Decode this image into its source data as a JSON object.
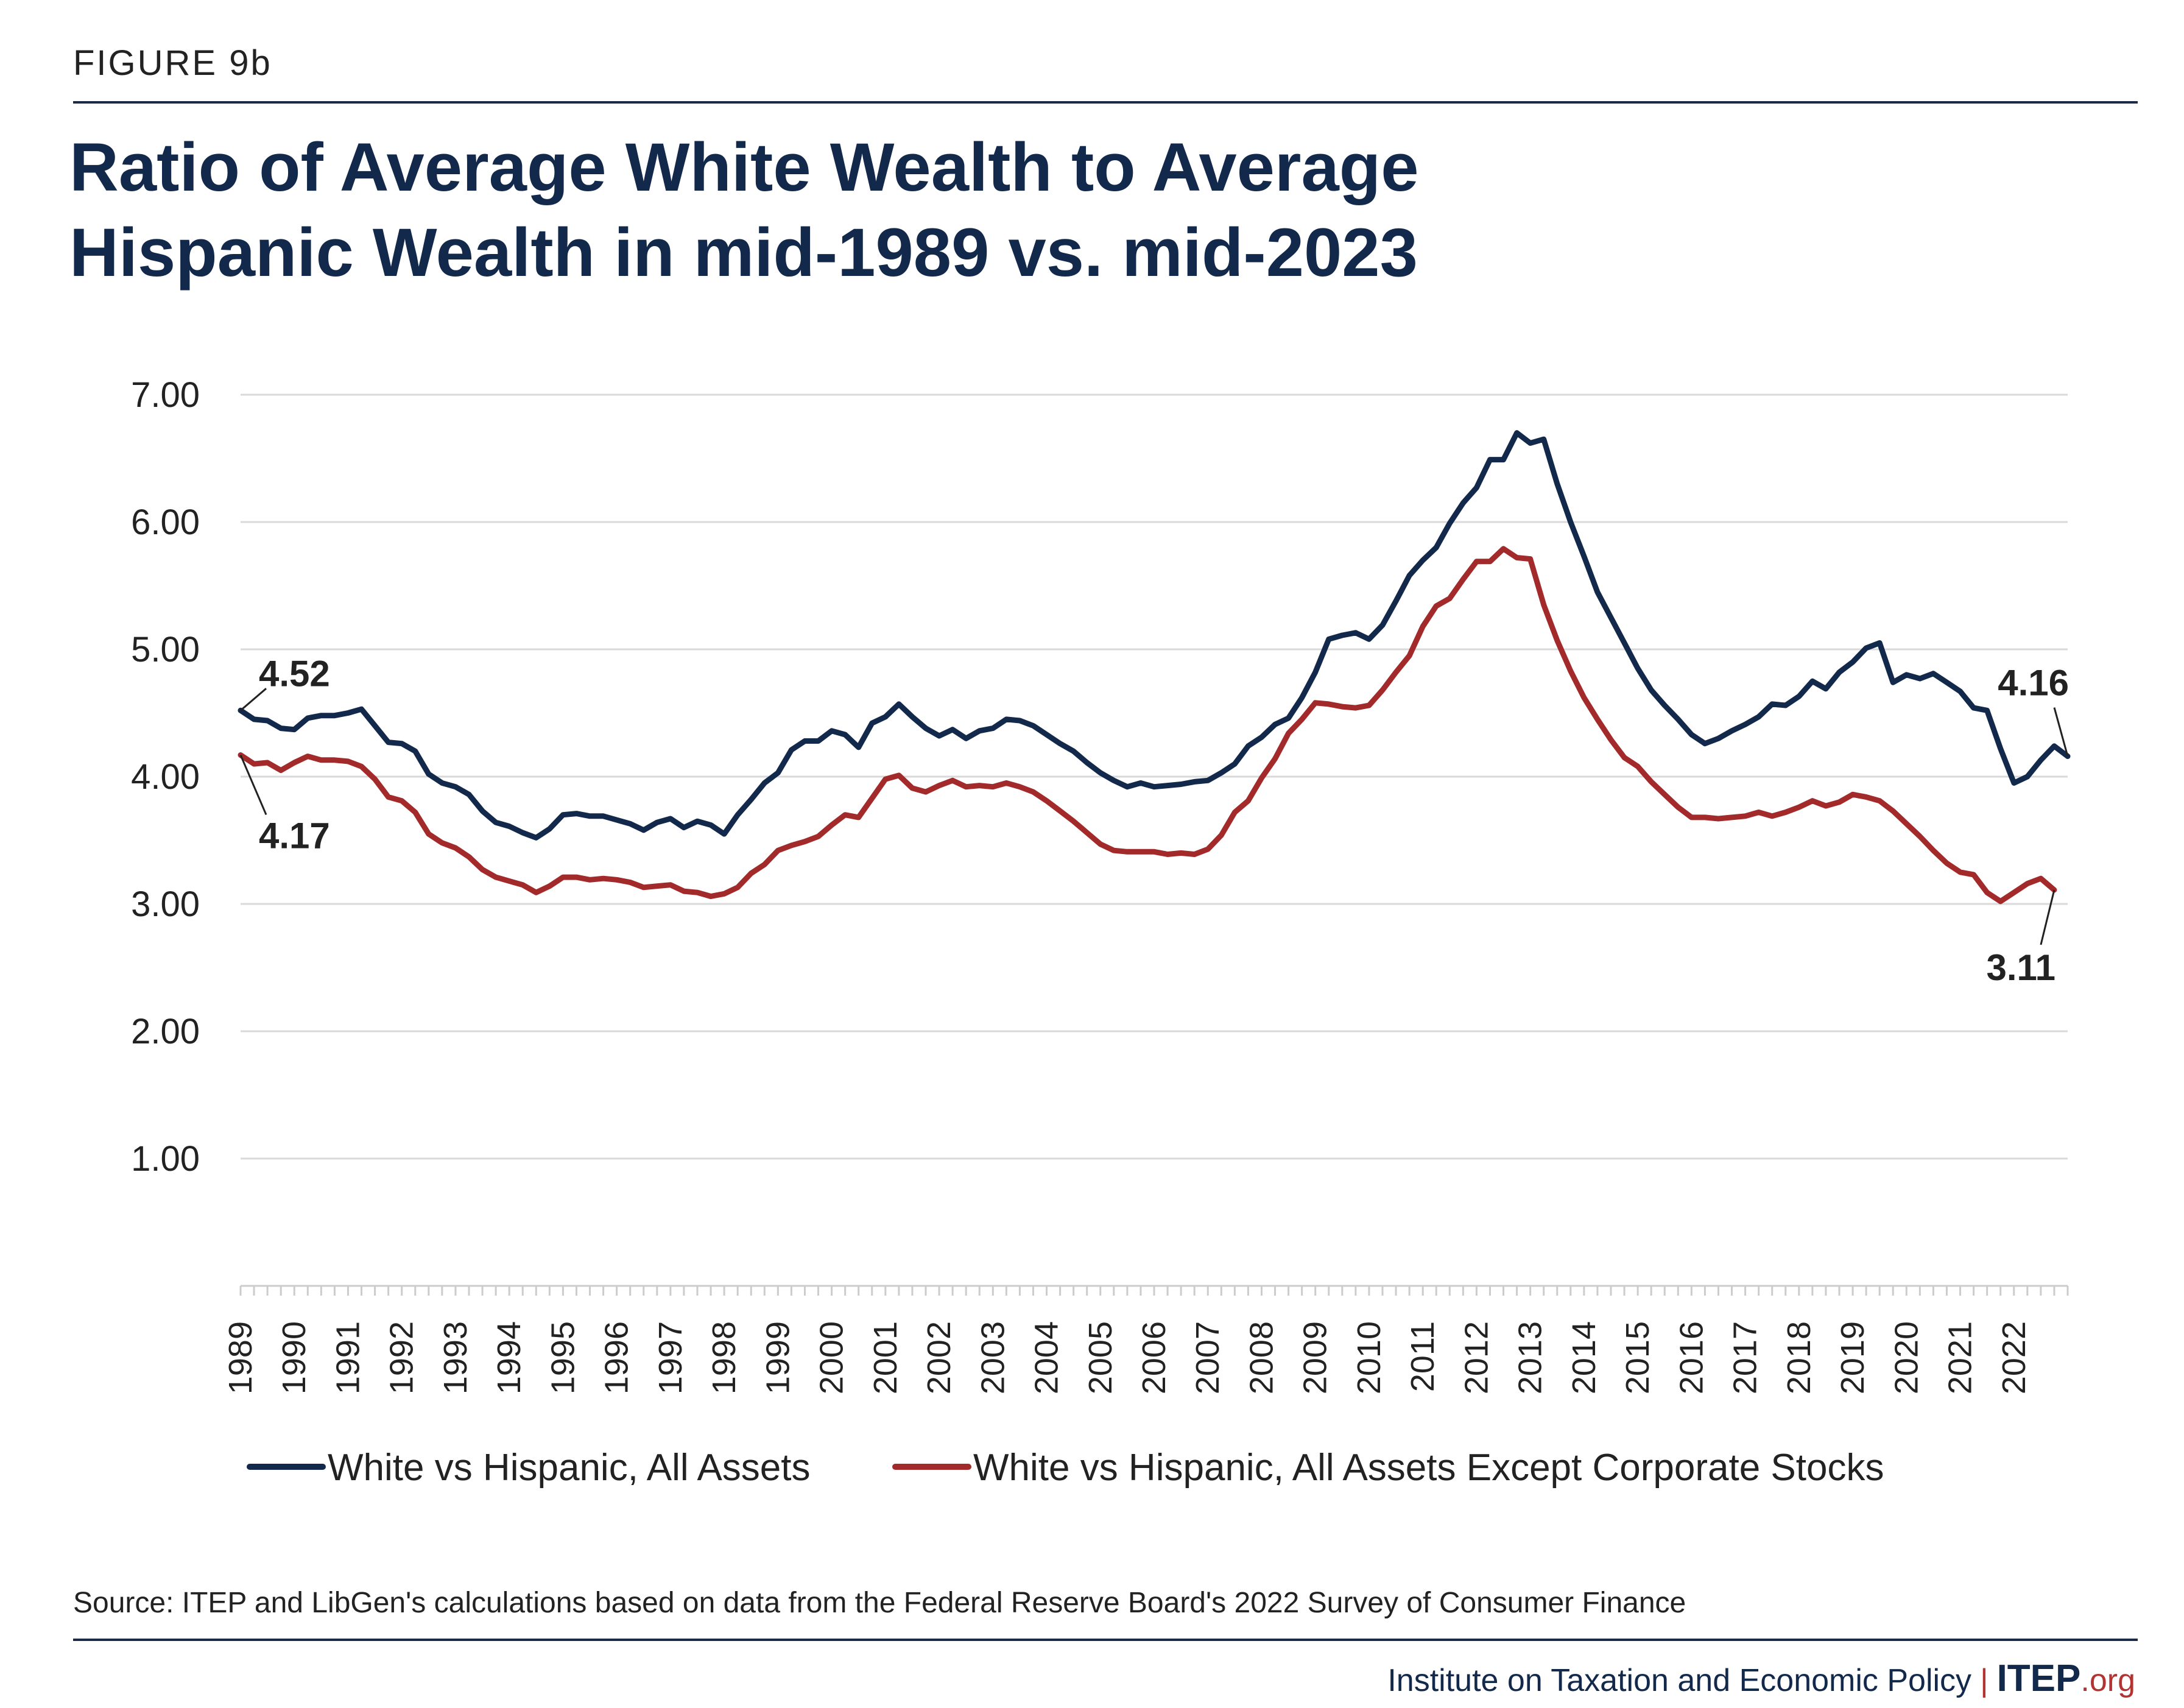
{
  "figure_label": "FIGURE 9b",
  "title_line1": "Ratio of Average White Wealth to Average",
  "title_line2": "Hispanic Wealth in mid-1989 vs. mid-2023",
  "source": "Source: ITEP and LibGen's calculations based on data from the Federal Reserve Board's 2022 Survey of Consumer Finance",
  "footer": {
    "org_name": "Institute on Taxation and Economic Policy",
    "logo_main": "ITEP",
    "logo_suffix": ".org"
  },
  "colors": {
    "navy": "#13294b",
    "red": "#a32a2a",
    "grid": "#d9d9d9",
    "text": "#222222"
  },
  "chart_data": {
    "type": "line",
    "title": "Ratio of Average White Wealth to Average Hispanic Wealth in mid-1989 vs. mid-2023",
    "xlabel": "",
    "ylabel": "",
    "ylim": [
      0,
      7
    ],
    "yticks": [
      "7.00",
      "6.00",
      "5.00",
      "4.00",
      "3.00",
      "2.00",
      "1.00"
    ],
    "ytick_values": [
      7,
      6,
      5,
      4,
      3,
      2,
      1
    ],
    "xtick_labels": [
      "1989",
      "1990",
      "1991",
      "1992",
      "1993",
      "1994",
      "1995",
      "1996",
      "1997",
      "1998",
      "1999",
      "2000",
      "2001",
      "2002",
      "2003",
      "2004",
      "2005",
      "2006",
      "2007",
      "2008",
      "2009",
      "2010",
      "2011",
      "2012",
      "2013",
      "2014",
      "2015",
      "2016",
      "2017",
      "2018",
      "2019",
      "2020",
      "2021",
      "2022"
    ],
    "x_start_year": 1989,
    "x_step": 0.25,
    "grid": "horizontal",
    "legend": "bottom",
    "series": [
      {
        "name": "White vs Hispanic, All Assets",
        "color": "#13294b",
        "values": [
          4.52,
          4.45,
          4.44,
          4.38,
          4.37,
          4.46,
          4.48,
          4.48,
          4.5,
          4.53,
          4.4,
          4.27,
          4.26,
          4.2,
          4.02,
          3.95,
          3.92,
          3.86,
          3.73,
          3.64,
          3.61,
          3.56,
          3.52,
          3.59,
          3.7,
          3.71,
          3.69,
          3.69,
          3.66,
          3.63,
          3.58,
          3.64,
          3.67,
          3.6,
          3.65,
          3.62,
          3.55,
          3.7,
          3.82,
          3.95,
          4.03,
          4.21,
          4.28,
          4.28,
          4.36,
          4.33,
          4.23,
          4.42,
          4.47,
          4.57,
          4.47,
          4.38,
          4.32,
          4.37,
          4.3,
          4.36,
          4.38,
          4.45,
          4.44,
          4.4,
          4.33,
          4.26,
          4.2,
          4.11,
          4.03,
          3.97,
          3.92,
          3.95,
          3.92,
          3.93,
          3.94,
          3.96,
          3.97,
          4.03,
          4.1,
          4.24,
          4.31,
          4.41,
          4.46,
          4.62,
          4.82,
          5.08,
          5.11,
          5.13,
          5.08,
          5.19,
          5.38,
          5.58,
          5.7,
          5.8,
          5.99,
          6.15,
          6.27,
          6.49,
          6.49,
          6.7,
          6.62,
          6.65,
          6.3,
          6.0,
          5.73,
          5.45,
          5.25,
          5.05,
          4.85,
          4.68,
          4.56,
          4.45,
          4.33,
          4.26,
          4.3,
          4.36,
          4.41,
          4.47,
          4.57,
          4.56,
          4.63,
          4.75,
          4.69,
          4.82,
          4.9,
          5.01,
          5.05,
          4.74,
          4.8,
          4.77,
          4.81,
          4.74,
          4.67,
          4.54,
          4.52,
          4.22,
          3.95,
          4.0,
          4.13,
          4.24,
          4.16
        ]
      },
      {
        "name": "White vs Hispanic, All Assets Except Corporate Stocks",
        "color": "#a32a2a",
        "values": [
          4.17,
          4.1,
          4.11,
          4.05,
          4.11,
          4.16,
          4.13,
          4.13,
          4.12,
          4.08,
          3.98,
          3.84,
          3.81,
          3.72,
          3.55,
          3.48,
          3.44,
          3.37,
          3.27,
          3.21,
          3.18,
          3.15,
          3.09,
          3.14,
          3.21,
          3.21,
          3.19,
          3.2,
          3.19,
          3.17,
          3.13,
          3.14,
          3.15,
          3.1,
          3.09,
          3.06,
          3.08,
          3.13,
          3.24,
          3.31,
          3.42,
          3.46,
          3.49,
          3.53,
          3.62,
          3.7,
          3.68,
          3.83,
          3.98,
          4.01,
          3.91,
          3.88,
          3.93,
          3.97,
          3.92,
          3.93,
          3.92,
          3.95,
          3.92,
          3.88,
          3.81,
          3.73,
          3.65,
          3.56,
          3.47,
          3.42,
          3.41,
          3.41,
          3.41,
          3.39,
          3.4,
          3.39,
          3.43,
          3.54,
          3.72,
          3.81,
          3.99,
          4.14,
          4.34,
          4.45,
          4.58,
          4.57,
          4.55,
          4.54,
          4.56,
          4.68,
          4.82,
          4.95,
          5.18,
          5.34,
          5.4,
          5.55,
          5.69,
          5.69,
          5.79,
          5.72,
          5.71,
          5.35,
          5.07,
          4.83,
          4.62,
          4.45,
          4.29,
          4.15,
          4.08,
          3.96,
          3.86,
          3.76,
          3.68,
          3.68,
          3.67,
          3.68,
          3.69,
          3.72,
          3.69,
          3.72,
          3.76,
          3.81,
          3.77,
          3.8,
          3.86,
          3.84,
          3.81,
          3.73,
          3.63,
          3.53,
          3.42,
          3.32,
          3.25,
          3.23,
          3.09,
          3.02,
          3.09,
          3.16,
          3.2,
          3.11
        ]
      }
    ],
    "annotations": [
      {
        "text": "4.52",
        "series": 0,
        "position": "start",
        "placement": "above"
      },
      {
        "text": "4.17",
        "series": 1,
        "position": "start",
        "placement": "below"
      },
      {
        "text": "4.16",
        "series": 0,
        "position": "end",
        "placement": "above"
      },
      {
        "text": "3.11",
        "series": 1,
        "position": "end",
        "placement": "below"
      }
    ]
  }
}
